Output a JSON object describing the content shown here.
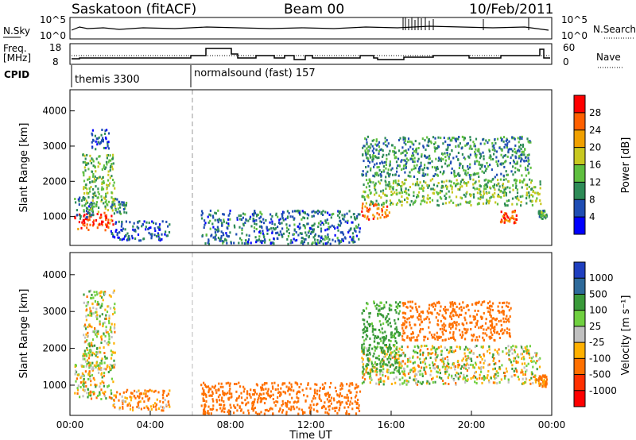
{
  "header": {
    "site": "Saskatoon (fitACF)",
    "beam": "Beam 00",
    "date": "10/Feb/2011"
  },
  "panels": {
    "sky_noise": {
      "left_label": "N.Sky",
      "right_label": "N.Search",
      "left_ticks": [
        "10^5",
        "10^0"
      ],
      "right_ticks": [
        "10^5",
        "10^0"
      ]
    },
    "freq_nave": {
      "left_label_line1": "Freq.",
      "left_label_line2": "[MHz]",
      "right_label": "Nave",
      "left_ticks": [
        "18",
        "8"
      ],
      "right_ticks": [
        "60",
        "0"
      ]
    },
    "cpid": {
      "label": "CPID",
      "segments": [
        {
          "start_hr": 0,
          "end_hr": 6,
          "name": "themis 3300"
        },
        {
          "start_hr": 6,
          "end_hr": 24,
          "name": "normalsound (fast) 157"
        }
      ]
    }
  },
  "colors": {
    "power_scale": [
      "#0000ff",
      "#1f4db3",
      "#2e8b57",
      "#5fbf3f",
      "#c8c820",
      "#f0a000",
      "#ff6000",
      "#ff0000"
    ],
    "velocity_scale": [
      "#1f3fbf",
      "#2e6a9a",
      "#3a9a3a",
      "#70d040",
      "#c0c0c0",
      "#ffb000",
      "#ff7000",
      "#ff3000",
      "#ff0000"
    ]
  },
  "chart_data": [
    {
      "type": "heatmap",
      "name": "power",
      "ylabel": "Slant Range [km]",
      "xlabel": "",
      "ylim": [
        180,
        4600
      ],
      "xlim": [
        0,
        24
      ],
      "yticks": [
        1000,
        2000,
        3000,
        4000
      ],
      "colorbar_label": "Power [dB]",
      "colorbar_ticks": [
        "28",
        "24",
        "20",
        "16",
        "12",
        "8",
        "4"
      ],
      "colorbar_range": [
        0,
        32
      ],
      "regions": [
        {
          "t0": 0.2,
          "t1": 2.2,
          "r0": 600,
          "r1": 1150,
          "value": 28
        },
        {
          "t0": 0.2,
          "t1": 1.2,
          "r0": 900,
          "r1": 1600,
          "value": 8
        },
        {
          "t0": 0.6,
          "t1": 2.3,
          "r0": 1100,
          "r1": 2800,
          "value": 14
        },
        {
          "t0": 1.0,
          "t1": 2.0,
          "r0": 2900,
          "r1": 3500,
          "value": 6
        },
        {
          "t0": 2.0,
          "t1": 2.9,
          "r0": 1050,
          "r1": 1550,
          "value": 10
        },
        {
          "t0": 2.0,
          "t1": 5.0,
          "r0": 300,
          "r1": 900,
          "value": 6
        },
        {
          "t0": 6.5,
          "t1": 14.5,
          "r0": 200,
          "r1": 1200,
          "value": 8
        },
        {
          "t0": 14.5,
          "t1": 23.5,
          "r0": 1300,
          "r1": 2100,
          "value": 14
        },
        {
          "t0": 14.5,
          "t1": 16.0,
          "r0": 900,
          "r1": 1400,
          "value": 26
        },
        {
          "t0": 14.5,
          "t1": 23.0,
          "r0": 2100,
          "r1": 3300,
          "value": 10
        },
        {
          "t0": 21.4,
          "t1": 22.3,
          "r0": 800,
          "r1": 1200,
          "value": 26
        },
        {
          "t0": 23.3,
          "t1": 23.8,
          "r0": 900,
          "r1": 1200,
          "value": 12
        }
      ]
    },
    {
      "type": "heatmap",
      "name": "velocity",
      "ylabel": "Slant Range [km]",
      "xlabel": "Time UT",
      "ylim": [
        180,
        4600
      ],
      "xlim": [
        0,
        24
      ],
      "xtick_labels": [
        "00:00",
        "04:00",
        "08:00",
        "12:00",
        "16:00",
        "20:00",
        "00:00"
      ],
      "yticks": [
        1000,
        2000,
        3000,
        4000
      ],
      "colorbar_label": "Velocity [m s⁻¹]",
      "colorbar_ticks": [
        "1000",
        "500",
        "100",
        "25",
        "-25",
        "-100",
        "-500",
        "-1000"
      ],
      "regions": [
        {
          "t0": 0.2,
          "t1": 2.2,
          "r0": 600,
          "r1": 1600,
          "value": 0
        },
        {
          "t0": 0.6,
          "t1": 2.3,
          "r0": 1400,
          "r1": 3600,
          "value": 0
        },
        {
          "t0": 2.0,
          "t1": 5.0,
          "r0": 300,
          "r1": 900,
          "value": -150
        },
        {
          "t0": 6.5,
          "t1": 14.5,
          "r0": 200,
          "r1": 1100,
          "value": -300
        },
        {
          "t0": 14.5,
          "t1": 23.5,
          "r0": 1000,
          "r1": 2100,
          "value": 0
        },
        {
          "t0": 14.5,
          "t1": 16.5,
          "r0": 1300,
          "r1": 3300,
          "value": 200
        },
        {
          "t0": 16.5,
          "t1": 22.0,
          "r0": 2200,
          "r1": 3300,
          "value": -300
        },
        {
          "t0": 23.3,
          "t1": 23.8,
          "r0": 900,
          "r1": 1300,
          "value": -200
        }
      ]
    }
  ]
}
